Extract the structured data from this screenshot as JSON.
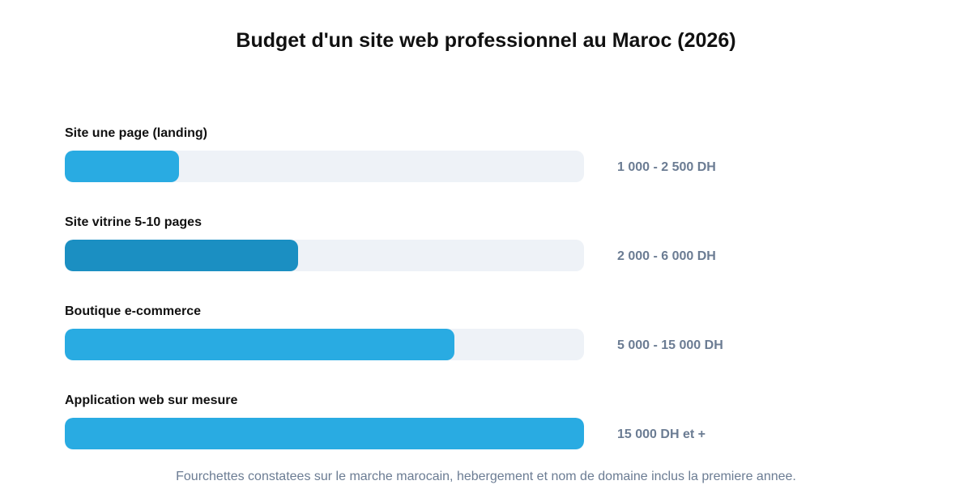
{
  "chart_data": {
    "type": "bar",
    "orientation": "horizontal",
    "title": "Budget d'un site web professionnel au Maroc (2026)",
    "categories": [
      "Site une page (landing)",
      "Site vitrine 5-10 pages",
      "Boutique e-commerce",
      "Application web sur mesure"
    ],
    "values": [
      22,
      45,
      75,
      100
    ],
    "value_labels": [
      "1 000 - 2 500 DH",
      "2 000 - 6 000 DH",
      "5 000 - 15 000 DH",
      "15 000 DH et +"
    ],
    "xlim": [
      0,
      100
    ],
    "grid": false,
    "legend": "none",
    "footnote": "Fourchettes constatees sur le marche marocain, hebergement et nom de domaine inclus la premiere annee.",
    "colors": {
      "bar": "#29abe2",
      "bar_highlight": "#1b8fc2",
      "track": "#eef2f7",
      "value_text": "#6b7c93"
    },
    "highlight_index": 1
  }
}
